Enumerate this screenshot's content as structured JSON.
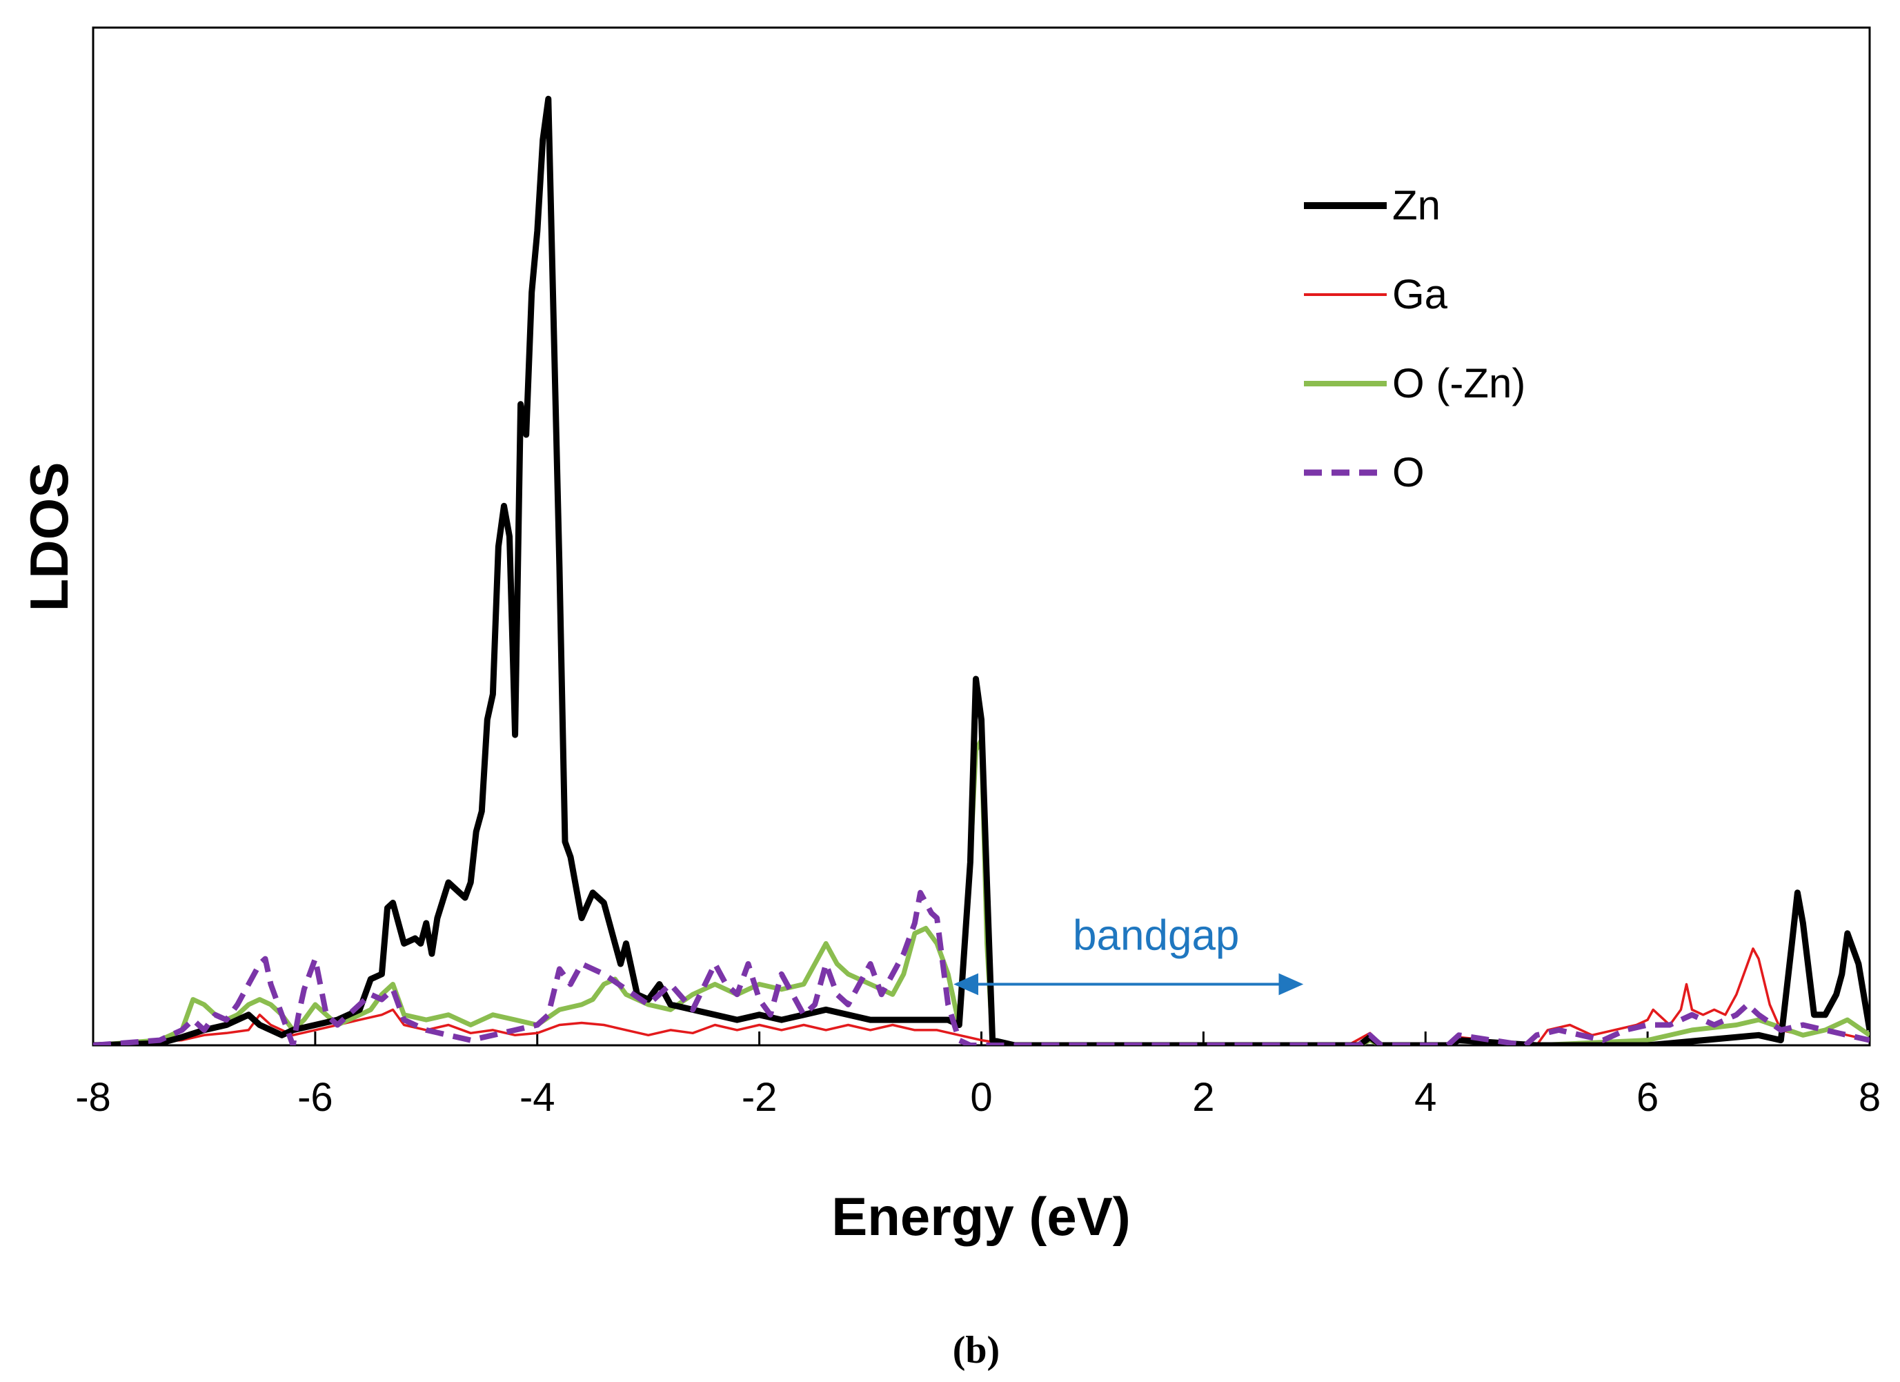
{
  "chart_data": {
    "type": "line",
    "title": "",
    "xlabel": "Energy (eV)",
    "ylabel": "LDOS",
    "xlim": [
      -8,
      8
    ],
    "ylim": [
      0,
      10
    ],
    "x_ticks": [
      -8,
      -6,
      -4,
      -2,
      0,
      2,
      4,
      6,
      8
    ],
    "x_tick_labels": [
      "-8",
      "-6",
      "-4",
      "-2",
      "0",
      "2",
      "4",
      "6",
      "8"
    ],
    "y_ticks_shown": false,
    "grid": false,
    "legend_position": "top-right",
    "series": [
      {
        "name": "Zn",
        "color": "#000000",
        "style": "solid-thick",
        "x": [
          -8,
          -7.4,
          -7.2,
          -7.0,
          -6.8,
          -6.6,
          -6.5,
          -6.4,
          -6.3,
          -6.2,
          -6.0,
          -5.8,
          -5.6,
          -5.5,
          -5.4,
          -5.35,
          -5.3,
          -5.2,
          -5.1,
          -5.05,
          -5.0,
          -4.95,
          -4.9,
          -4.8,
          -4.7,
          -4.65,
          -4.6,
          -4.55,
          -4.5,
          -4.45,
          -4.4,
          -4.35,
          -4.3,
          -4.25,
          -4.2,
          -4.15,
          -4.1,
          -4.05,
          -4.0,
          -3.95,
          -3.9,
          -3.8,
          -3.75,
          -3.7,
          -3.6,
          -3.5,
          -3.4,
          -3.3,
          -3.25,
          -3.2,
          -3.1,
          -3.0,
          -2.9,
          -2.8,
          -2.6,
          -2.4,
          -2.2,
          -2.0,
          -1.8,
          -1.6,
          -1.4,
          -1.2,
          -1.0,
          -0.8,
          -0.6,
          -0.3,
          -0.2,
          -0.1,
          -0.05,
          0.0,
          0.05,
          0.1,
          0.3,
          1.0,
          3.4,
          3.5,
          3.6,
          4.2,
          4.3,
          5.0,
          6.0,
          6.5,
          7.0,
          7.2,
          7.3,
          7.35,
          7.4,
          7.5,
          7.6,
          7.7,
          7.75,
          7.8,
          7.9,
          8.0
        ],
        "values": [
          0,
          0.02,
          0.08,
          0.15,
          0.2,
          0.3,
          0.2,
          0.15,
          0.1,
          0.15,
          0.2,
          0.25,
          0.35,
          0.65,
          0.7,
          1.35,
          1.4,
          1.0,
          1.05,
          1.0,
          1.2,
          0.9,
          1.25,
          1.6,
          1.5,
          1.45,
          1.6,
          2.1,
          2.3,
          3.2,
          3.45,
          4.9,
          5.3,
          5.0,
          3.05,
          6.3,
          6.0,
          7.4,
          8.0,
          8.9,
          9.3,
          4.7,
          2.0,
          1.85,
          1.25,
          1.5,
          1.4,
          1.0,
          0.8,
          1.0,
          0.5,
          0.45,
          0.6,
          0.4,
          0.35,
          0.3,
          0.25,
          0.3,
          0.25,
          0.3,
          0.35,
          0.3,
          0.25,
          0.25,
          0.25,
          0.25,
          0.2,
          1.8,
          3.6,
          3.2,
          1.6,
          0.05,
          0,
          0,
          0,
          0.08,
          0,
          0,
          0.05,
          0,
          0,
          0.05,
          0.1,
          0.05,
          1.0,
          1.5,
          1.2,
          0.3,
          0.3,
          0.5,
          0.7,
          1.1,
          0.8,
          0.15
        ]
      },
      {
        "name": "Ga",
        "color": "#e31a1c",
        "style": "solid-thin",
        "x": [
          -8,
          -7.2,
          -7.0,
          -6.8,
          -6.6,
          -6.5,
          -6.4,
          -6.2,
          -6.0,
          -5.8,
          -5.6,
          -5.4,
          -5.3,
          -5.2,
          -5.0,
          -4.8,
          -4.6,
          -4.4,
          -4.2,
          -4.0,
          -3.8,
          -3.6,
          -3.4,
          -3.2,
          -3.0,
          -2.8,
          -2.6,
          -2.4,
          -2.2,
          -2.0,
          -1.8,
          -1.6,
          -1.4,
          -1.2,
          -1.0,
          -0.8,
          -0.6,
          -0.4,
          -0.2,
          0.0,
          0.3,
          1.0,
          3.3,
          3.5,
          3.6,
          4.2,
          4.3,
          5.0,
          5.1,
          5.3,
          5.5,
          5.7,
          5.9,
          6.0,
          6.05,
          6.1,
          6.2,
          6.3,
          6.35,
          6.4,
          6.5,
          6.6,
          6.7,
          6.8,
          6.9,
          6.95,
          7.0,
          7.1,
          7.2,
          7.4,
          7.6,
          7.8,
          8.0
        ],
        "values": [
          0,
          0.05,
          0.1,
          0.12,
          0.15,
          0.3,
          0.2,
          0.1,
          0.15,
          0.2,
          0.25,
          0.3,
          0.35,
          0.2,
          0.15,
          0.2,
          0.12,
          0.15,
          0.1,
          0.12,
          0.2,
          0.22,
          0.2,
          0.15,
          0.1,
          0.15,
          0.12,
          0.2,
          0.15,
          0.2,
          0.15,
          0.2,
          0.15,
          0.2,
          0.15,
          0.2,
          0.15,
          0.15,
          0.1,
          0.05,
          0,
          0,
          0,
          0.12,
          0,
          0,
          0.08,
          0,
          0.15,
          0.2,
          0.1,
          0.15,
          0.2,
          0.25,
          0.35,
          0.3,
          0.2,
          0.35,
          0.6,
          0.35,
          0.3,
          0.35,
          0.3,
          0.5,
          0.8,
          0.95,
          0.85,
          0.4,
          0.15,
          0.1,
          0.15,
          0.1,
          0.05
        ]
      },
      {
        "name": "O (-Zn)",
        "color": "#8bbd4f",
        "style": "solid-medium",
        "x": [
          -8,
          -7.4,
          -7.2,
          -7.1,
          -7.0,
          -6.9,
          -6.8,
          -6.7,
          -6.6,
          -6.5,
          -6.4,
          -6.3,
          -6.2,
          -6.1,
          -6.0,
          -5.9,
          -5.8,
          -5.6,
          -5.5,
          -5.4,
          -5.3,
          -5.2,
          -5.0,
          -4.8,
          -4.6,
          -4.4,
          -4.2,
          -4.0,
          -3.8,
          -3.6,
          -3.5,
          -3.4,
          -3.3,
          -3.2,
          -3.0,
          -2.8,
          -2.6,
          -2.4,
          -2.2,
          -2.0,
          -1.8,
          -1.6,
          -1.5,
          -1.4,
          -1.3,
          -1.2,
          -1.0,
          -0.8,
          -0.7,
          -0.6,
          -0.5,
          -0.4,
          -0.3,
          -0.2,
          -0.1,
          -0.05,
          0.0,
          0.05,
          0.1,
          0.3,
          1.0,
          3.4,
          3.5,
          3.6,
          4.2,
          4.3,
          5.0,
          6.0,
          6.4,
          6.8,
          7.0,
          7.4,
          7.6,
          7.8,
          8.0
        ],
        "values": [
          0,
          0.05,
          0.15,
          0.45,
          0.4,
          0.3,
          0.25,
          0.3,
          0.4,
          0.45,
          0.4,
          0.3,
          0.15,
          0.25,
          0.4,
          0.3,
          0.2,
          0.3,
          0.35,
          0.5,
          0.6,
          0.3,
          0.25,
          0.3,
          0.2,
          0.3,
          0.25,
          0.2,
          0.35,
          0.4,
          0.45,
          0.6,
          0.65,
          0.5,
          0.4,
          0.35,
          0.5,
          0.6,
          0.5,
          0.6,
          0.55,
          0.6,
          0.8,
          1.0,
          0.8,
          0.7,
          0.6,
          0.5,
          0.7,
          1.1,
          1.15,
          1.0,
          0.7,
          0.2,
          1.8,
          2.9,
          3.0,
          1.0,
          0.05,
          0,
          0,
          0,
          0.05,
          0,
          0,
          0.05,
          0,
          0.05,
          0.15,
          0.2,
          0.25,
          0.1,
          0.15,
          0.25,
          0.1
        ]
      },
      {
        "name": "O",
        "color": "#7b35a8",
        "style": "dashed",
        "x": [
          -8,
          -7.4,
          -7.2,
          -7.1,
          -7.0,
          -6.9,
          -6.8,
          -6.7,
          -6.6,
          -6.5,
          -6.45,
          -6.4,
          -6.3,
          -6.2,
          -6.15,
          -6.1,
          -6.0,
          -5.9,
          -5.8,
          -5.6,
          -5.5,
          -5.4,
          -5.3,
          -5.2,
          -5.0,
          -4.8,
          -4.6,
          -4.4,
          -4.2,
          -4.0,
          -3.9,
          -3.8,
          -3.7,
          -3.6,
          -3.4,
          -3.2,
          -3.0,
          -2.8,
          -2.6,
          -2.4,
          -2.3,
          -2.2,
          -2.1,
          -2.0,
          -1.9,
          -1.8,
          -1.7,
          -1.6,
          -1.5,
          -1.4,
          -1.3,
          -1.2,
          -1.1,
          -1.0,
          -0.9,
          -0.8,
          -0.7,
          -0.6,
          -0.55,
          -0.5,
          -0.45,
          -0.4,
          -0.3,
          -0.2,
          -0.1,
          0.0,
          0.1,
          0.3,
          1.0,
          3.4,
          3.5,
          3.6,
          4.2,
          4.3,
          4.9,
          5.0,
          5.2,
          5.4,
          5.6,
          5.8,
          6.0,
          6.2,
          6.4,
          6.6,
          6.8,
          6.9,
          7.0,
          7.2,
          7.4,
          7.6,
          7.8,
          8.0
        ],
        "values": [
          0,
          0.05,
          0.15,
          0.25,
          0.15,
          0.3,
          0.25,
          0.4,
          0.6,
          0.8,
          0.85,
          0.6,
          0.3,
          0.0,
          0.3,
          0.55,
          0.85,
          0.3,
          0.2,
          0.4,
          0.5,
          0.45,
          0.55,
          0.25,
          0.15,
          0.1,
          0.05,
          0.1,
          0.15,
          0.2,
          0.3,
          0.75,
          0.6,
          0.8,
          0.7,
          0.55,
          0.4,
          0.6,
          0.35,
          0.8,
          0.6,
          0.5,
          0.8,
          0.45,
          0.3,
          0.7,
          0.5,
          0.3,
          0.4,
          0.8,
          0.5,
          0.4,
          0.6,
          0.8,
          0.5,
          0.7,
          0.9,
          1.2,
          1.5,
          1.4,
          1.3,
          1.25,
          0.4,
          0.05,
          0,
          0,
          0,
          0,
          0,
          0,
          0.1,
          0,
          0,
          0.1,
          0,
          0.1,
          0.15,
          0.1,
          0.05,
          0.15,
          0.2,
          0.2,
          0.3,
          0.2,
          0.3,
          0.4,
          0.3,
          0.15,
          0.2,
          0.15,
          0.1,
          0.05
        ]
      }
    ],
    "annotations": [
      {
        "text": "bandgap",
        "color": "#1f77c0",
        "arrow_from_x": -0.3,
        "arrow_to_x": 2.95,
        "arrow_y": 0.6
      }
    ]
  },
  "caption": "(b)"
}
